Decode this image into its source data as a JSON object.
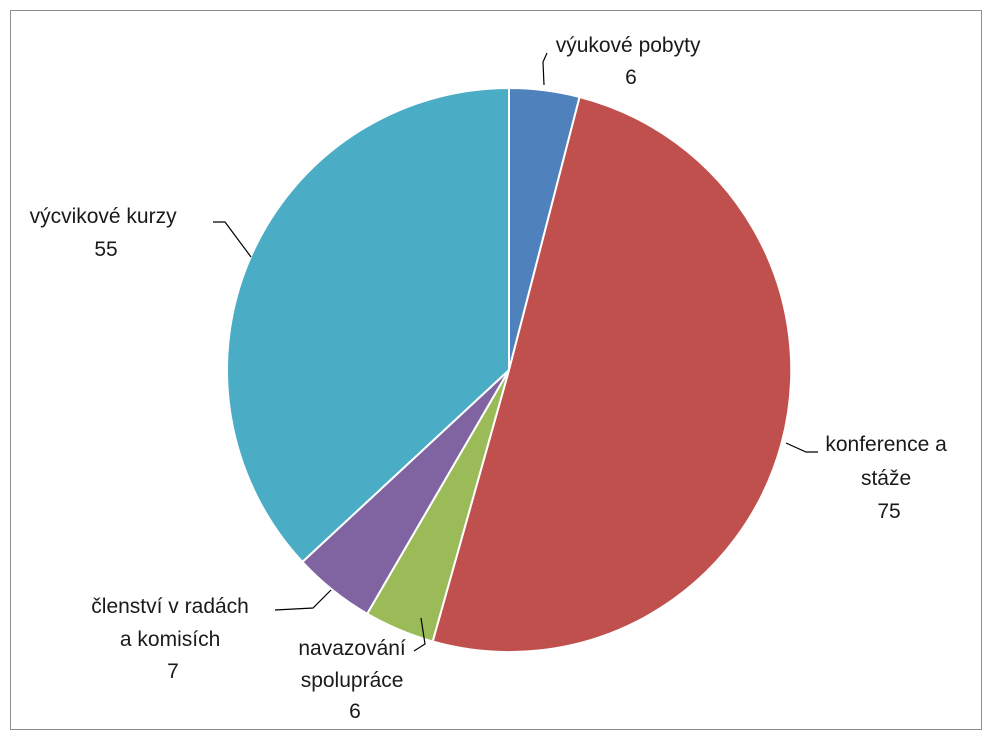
{
  "chart_data": {
    "type": "pie",
    "title": "",
    "start_angle_deg": 0,
    "direction": "clockwise",
    "slices": [
      {
        "label": "výukové pobyty",
        "label_lines": [
          "výukové pobyty",
          "6"
        ],
        "value": 6,
        "color": "#4F81BD"
      },
      {
        "label": "konference a stáže",
        "label_lines": [
          "konference a",
          "stáže",
          "75"
        ],
        "value": 75,
        "color": "#C0504D"
      },
      {
        "label": "navazování spolupráce",
        "label_lines": [
          "navazování",
          "spolupráce",
          "6"
        ],
        "value": 6,
        "color": "#9BBB59"
      },
      {
        "label": "členství v radách a komisích",
        "label_lines": [
          "členství v radách",
          "a komisích",
          "7"
        ],
        "value": 7,
        "color": "#8064A2"
      },
      {
        "label": "výcvikové kurzy",
        "label_lines": [
          "výcvikové kurzy",
          "55"
        ],
        "value": 55,
        "color": "#4BACC6"
      }
    ]
  }
}
